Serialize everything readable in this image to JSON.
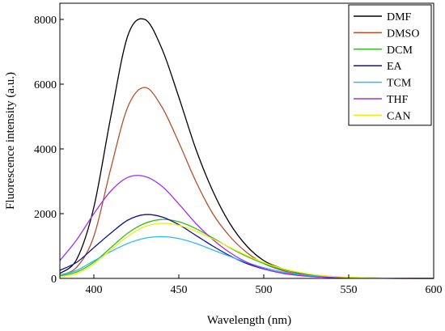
{
  "chart_data": {
    "type": "line",
    "title": "",
    "xlabel": "Wavelength (nm)",
    "ylabel": "Fluorescence intensity (a.u.)",
    "xlim": [
      380,
      600
    ],
    "ylim": [
      0,
      8500
    ],
    "xticks": [
      400,
      450,
      500,
      550,
      600
    ],
    "yticks": [
      0,
      2000,
      4000,
      6000,
      8000
    ],
    "grid": false,
    "legend_position": "top-right",
    "series": [
      {
        "name": "DMF",
        "color": "#000000",
        "x": [
          380,
          390,
          400,
          410,
          420,
          430,
          440,
          450,
          460,
          470,
          480,
          490,
          500,
          510,
          520,
          530,
          540,
          550,
          560,
          570,
          580,
          590,
          600
        ],
        "y": [
          150,
          600,
          2200,
          5000,
          7500,
          8000,
          7100,
          5600,
          4000,
          2700,
          1700,
          1000,
          550,
          320,
          170,
          90,
          45,
          25,
          15,
          8,
          5,
          3,
          2
        ]
      },
      {
        "name": "DMSO",
        "color": "#b5502a",
        "x": [
          380,
          390,
          400,
          410,
          420,
          430,
          440,
          450,
          460,
          470,
          480,
          490,
          500,
          510,
          520,
          530,
          540,
          550,
          560,
          570,
          580,
          590,
          600
        ],
        "y": [
          100,
          350,
          1300,
          3400,
          5300,
          5900,
          5300,
          4200,
          3000,
          2000,
          1300,
          800,
          460,
          260,
          140,
          70,
          35,
          18,
          9,
          5,
          3,
          2,
          1
        ]
      },
      {
        "name": "DCM",
        "color": "#33bb22",
        "x": [
          380,
          390,
          400,
          410,
          420,
          430,
          440,
          450,
          460,
          470,
          480,
          490,
          500,
          510,
          520,
          530,
          540,
          550,
          560,
          570,
          580,
          590,
          600
        ],
        "y": [
          80,
          200,
          500,
          950,
          1400,
          1700,
          1820,
          1750,
          1540,
          1250,
          950,
          680,
          460,
          290,
          180,
          105,
          60,
          33,
          18,
          10,
          6,
          3,
          2
        ]
      },
      {
        "name": "EA",
        "color": "#10109a",
        "x": [
          380,
          390,
          400,
          410,
          420,
          430,
          440,
          450,
          460,
          470,
          480,
          490,
          500,
          510,
          520,
          530,
          540,
          550,
          560,
          570,
          580,
          590,
          600
        ],
        "y": [
          250,
          500,
          950,
          1400,
          1800,
          1970,
          1900,
          1660,
          1330,
          1000,
          700,
          460,
          290,
          170,
          100,
          55,
          30,
          16,
          8,
          4,
          2,
          1,
          1
        ]
      },
      {
        "name": "TCM",
        "color": "#2fb9f3",
        "x": [
          380,
          390,
          400,
          410,
          420,
          430,
          440,
          450,
          460,
          470,
          480,
          490,
          500,
          510,
          520,
          530,
          540,
          550,
          560,
          570,
          580,
          590,
          600
        ],
        "y": [
          100,
          250,
          540,
          830,
          1080,
          1240,
          1290,
          1230,
          1080,
          880,
          680,
          490,
          330,
          210,
          130,
          75,
          42,
          23,
          12,
          6,
          3,
          2,
          1
        ]
      },
      {
        "name": "THF",
        "color": "#a02ff0",
        "x": [
          380,
          390,
          400,
          410,
          420,
          430,
          440,
          450,
          460,
          470,
          480,
          490,
          500,
          510,
          520,
          530,
          540,
          550,
          560,
          570,
          580,
          590,
          600
        ],
        "y": [
          550,
          1200,
          2000,
          2700,
          3120,
          3150,
          2850,
          2300,
          1700,
          1200,
          800,
          500,
          300,
          170,
          95,
          50,
          27,
          14,
          7,
          4,
          2,
          1,
          1
        ]
      },
      {
        "name": "CAN",
        "color": "#f0ee10",
        "x": [
          380,
          390,
          400,
          410,
          420,
          430,
          440,
          450,
          460,
          470,
          480,
          490,
          500,
          510,
          520,
          530,
          540,
          550,
          560,
          570,
          580,
          590,
          600
        ],
        "y": [
          50,
          150,
          450,
          880,
          1300,
          1600,
          1700,
          1640,
          1460,
          1220,
          960,
          710,
          490,
          320,
          200,
          115,
          65,
          35,
          18,
          10,
          5,
          3,
          2
        ]
      }
    ]
  }
}
